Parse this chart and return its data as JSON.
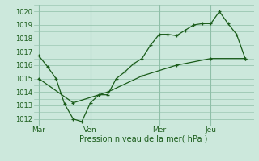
{
  "bg_color": "#cce8dc",
  "grid_color": "#8fbfa8",
  "line_color": "#1a5c1a",
  "xlabel": "Pression niveau de la mer( hPa )",
  "ylim": [
    1011.5,
    1020.5
  ],
  "yticks": [
    1012,
    1013,
    1014,
    1015,
    1016,
    1017,
    1018,
    1019,
    1020
  ],
  "day_labels": [
    "Mar",
    "Ven",
    "Mer",
    "Jeu"
  ],
  "day_positions": [
    0,
    3,
    7,
    10
  ],
  "line1_x": [
    0,
    0.5,
    1,
    1.5,
    2,
    2.5,
    3,
    3.5,
    4,
    4.5,
    5,
    5.5,
    6,
    6.5,
    7,
    7.5,
    8,
    8.5,
    9,
    9.5,
    10,
    10.5,
    11,
    11.5,
    12
  ],
  "line1_y": [
    1016.7,
    1015.9,
    1015.0,
    1013.1,
    1012.0,
    1011.8,
    1013.2,
    1013.8,
    1013.8,
    1015.0,
    1015.5,
    1016.1,
    1016.5,
    1017.5,
    1018.3,
    1018.3,
    1018.2,
    1018.6,
    1019.0,
    1019.1,
    1019.1,
    1020.0,
    1019.1,
    1018.3,
    1016.5
  ],
  "line2_x": [
    0,
    2,
    4,
    6,
    8,
    10,
    12
  ],
  "line2_y": [
    1015.0,
    1013.2,
    1014.0,
    1015.2,
    1016.0,
    1016.5,
    1016.5
  ],
  "vline_positions": [
    0,
    3,
    7,
    10
  ],
  "figsize": [
    3.2,
    2.0
  ],
  "dpi": 100
}
